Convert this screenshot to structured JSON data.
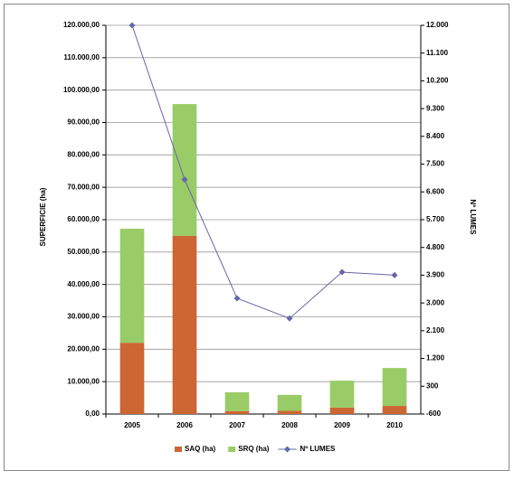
{
  "chart_data": {
    "type": "bar",
    "stacked": true,
    "ylabel": "SUPERFICIE (ha)",
    "y2label": "Nº LUMES",
    "categories": [
      "2005",
      "2006",
      "2007",
      "2008",
      "2009",
      "2010"
    ],
    "series": [
      {
        "name": "SAQ (ha)",
        "color": "#cc6633",
        "values": [
          22000,
          55000,
          900,
          1000,
          2000,
          2500
        ]
      },
      {
        "name": "SRQ (ha)",
        "color": "#99cc66",
        "values": [
          35200,
          40700,
          5800,
          4900,
          8300,
          11700
        ]
      },
      {
        "name": "Nº LUMES",
        "color": "#6666aa",
        "type": "line",
        "axis": "y2",
        "values": [
          12000,
          7000,
          3150,
          2500,
          4000,
          3900
        ]
      }
    ],
    "ylim": [
      0,
      120000
    ],
    "yticks": [
      {
        "value": 0,
        "label": "0,00"
      },
      {
        "value": 10000,
        "label": "10.000,00"
      },
      {
        "value": 20000,
        "label": "20.000,00"
      },
      {
        "value": 30000,
        "label": "30.000,00"
      },
      {
        "value": 40000,
        "label": "40.000,00"
      },
      {
        "value": 50000,
        "label": "50.000,00"
      },
      {
        "value": 60000,
        "label": "60.000,00"
      },
      {
        "value": 70000,
        "label": "70.000,00"
      },
      {
        "value": 80000,
        "label": "80.000,00"
      },
      {
        "value": 90000,
        "label": "90.000,00"
      },
      {
        "value": 100000,
        "label": "100.000,00"
      },
      {
        "value": 110000,
        "label": "110.000,00"
      },
      {
        "value": 120000,
        "label": "120.000,00"
      }
    ],
    "y2lim": [
      -600,
      12000
    ],
    "y2ticks": [
      -600,
      300,
      {
        "value": 1200,
        "label": "1.200"
      },
      {
        "value": 2100,
        "label": "2.100"
      },
      {
        "value": 3000,
        "label": "3.000"
      },
      {
        "value": 3900,
        "label": "3.900"
      },
      {
        "value": 4800,
        "label": "4.800"
      },
      {
        "value": 5700,
        "label": "5.700"
      },
      {
        "value": 6600,
        "label": "6.600"
      },
      {
        "value": 7500,
        "label": "7.500"
      },
      {
        "value": 8400,
        "label": "8.400"
      },
      {
        "value": 9300,
        "label": "9.300"
      },
      {
        "value": 10200,
        "label": "10.200"
      },
      {
        "value": 11100,
        "label": "11.100"
      },
      {
        "value": 12000,
        "label": "12.000"
      }
    ],
    "grid": true,
    "legend": "bottom"
  }
}
